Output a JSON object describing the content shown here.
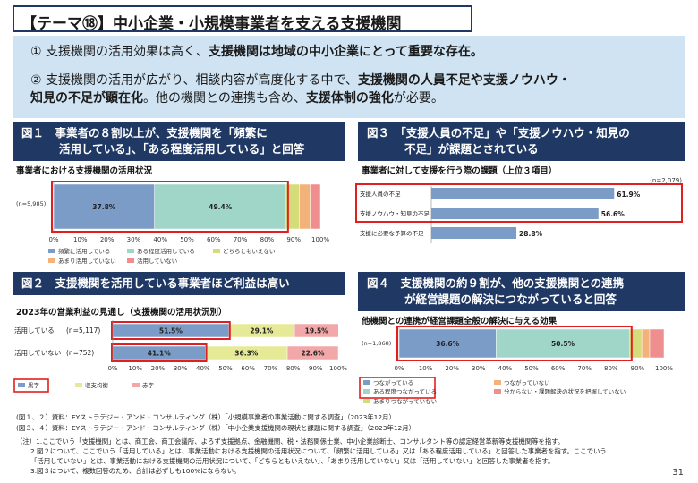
{
  "title": "【テーマ⑱】中小企業・小規模事業者を支える支援機関",
  "summary": {
    "p1": {
      "num": "①",
      "pre": "支援機関の活用効果は高く、",
      "bold": "支援機関は地域の中小企業にとって重要な存在。"
    },
    "p2": {
      "num": "②",
      "pre": "支援機関の活用が広がり、相談内容が高度化する中で、",
      "bold1": "支援機関の人員不足や支援ノウハウ・",
      "bold2": "知見の不足が顕在化",
      "mid": "。他の機関との連携も含め、",
      "bold3": "支援体制の強化",
      "post": "が必要。"
    }
  },
  "figures": {
    "fig1": {
      "line1": "図１　事業者の８割以上が、支援機関を「頻繁に",
      "line2": "活用している」、「ある程度活用している」と回答",
      "subtitle": "事業者における支援機関の活用状況"
    },
    "fig2": {
      "line1": "図２　支援機関を活用している事業者ほど利益は高い",
      "subtitle": "2023年の営業利益の見通し（支援機関の活用状況別）"
    },
    "fig3": {
      "line1": "図３　「支援人員の不足」や「支援ノウハウ・知見の",
      "line2": "不足」が課題とされている",
      "subtitle": "事業者に対して支援を行う際の課題（上位３項目）"
    },
    "fig4": {
      "line1": "図４　支援機関の約９割が、他の支援機関との連携",
      "line2": "が経営課題の解決につながっていると回答",
      "subtitle": "他機関との連携が経営課題全般の解決に与える効果"
    }
  },
  "chart_data": [
    {
      "id": "fig1",
      "type": "bar",
      "orientation": "horizontal",
      "stacked": true,
      "n_label": "(n=5,985)",
      "series": [
        {
          "name": "頻繁に活用している",
          "values": [
            37.8
          ],
          "label": "37.8%",
          "color": "#7b9cc7"
        },
        {
          "name": "ある程度活用している",
          "values": [
            49.4
          ],
          "label": "49.4%",
          "color": "#9fd6c8"
        },
        {
          "name": "どちらともいえない",
          "values": [
            5.0
          ],
          "color": "#d4dd7a"
        },
        {
          "name": "あまり活用していない",
          "values": [
            4.0
          ],
          "color": "#f3b27a"
        },
        {
          "name": "活用していない",
          "values": [
            3.8
          ],
          "color": "#ee8e8e"
        }
      ],
      "xticks": [
        "0%",
        "10%",
        "20%",
        "30%",
        "40%",
        "50%",
        "60%",
        "70%",
        "80%",
        "90%",
        "100%"
      ],
      "xlim": [
        0,
        100
      ]
    },
    {
      "id": "fig2",
      "type": "bar",
      "orientation": "horizontal",
      "stacked": true,
      "categories": [
        "活用している",
        "活用していない"
      ],
      "n_labels": [
        "(n=5,117)",
        "(n=752)"
      ],
      "series": [
        {
          "name": "黒字",
          "values": [
            51.5,
            41.1
          ],
          "labels": [
            "51.5%",
            "41.1%"
          ],
          "color": "#7b9cc7"
        },
        {
          "name": "収支均衡",
          "values": [
            29.1,
            36.3
          ],
          "labels": [
            "29.1%",
            "36.3%"
          ],
          "color": "#e6ea96"
        },
        {
          "name": "赤字",
          "values": [
            19.5,
            22.6
          ],
          "labels": [
            "19.5%",
            "22.6%"
          ],
          "color": "#f2a8a8"
        }
      ],
      "xticks": [
        "0%",
        "10%",
        "20%",
        "30%",
        "40%",
        "50%",
        "60%",
        "70%",
        "80%",
        "90%",
        "100%"
      ],
      "xlim": [
        0,
        100
      ]
    },
    {
      "id": "fig3",
      "type": "bar",
      "orientation": "horizontal",
      "n_label": "(n=2,079)",
      "categories": [
        "支援人員の不足",
        "支援ノウハウ・知見の不足",
        "支援に必要な予算の不足"
      ],
      "values": [
        61.9,
        56.6,
        28.8
      ],
      "labels": [
        "61.9%",
        "56.6%",
        "28.8%"
      ],
      "color": "#7b9cc7",
      "xlim": [
        0,
        80
      ]
    },
    {
      "id": "fig4",
      "type": "bar",
      "orientation": "horizontal",
      "stacked": true,
      "n_label": "(n=1,868)",
      "series": [
        {
          "name": "つながっている",
          "values": [
            36.6
          ],
          "label": "36.6%",
          "color": "#7b9cc7"
        },
        {
          "name": "ある程度つながっている",
          "values": [
            50.5
          ],
          "label": "50.5%",
          "color": "#9fd6c8"
        },
        {
          "name": "あまりつながっていない",
          "values": [
            4.5
          ],
          "color": "#d4dd7a"
        },
        {
          "name": "つながっていない",
          "values": [
            3.0
          ],
          "color": "#f3b27a"
        },
        {
          "name": "分からない・課題解決の状況を把握していない",
          "values": [
            5.4
          ],
          "color": "#ee8e8e"
        }
      ],
      "xticks": [
        "0%",
        "10%",
        "20%",
        "30%",
        "40%",
        "50%",
        "60%",
        "70%",
        "80%",
        "90%",
        "100%"
      ],
      "xlim": [
        0,
        100
      ]
    }
  ],
  "notes": {
    "src1": "(図１、２）資料：EYストラテジー・アンド・コンサルティング（株）「小規模事業者の事業活動に関する調査」（2023年12月）",
    "src2": "(図３、４）資料：EYストラテジー・アンド・コンサルティング（株）「中小企業支援機関の現状と課題に関する調査」（2023年12月）",
    "n1": "（注）1.ここでいう「支援機関」とは、商工会、商工会議所、よろず支援拠点、金融機関、税・法務関係士業、中小企業診断士、コンサルタント等の認定経営革新等支援機関等を指す。",
    "n2a": "2.図２について、ここでいう「活用している」とは、事業活動における支援機関の活用状況について、「頻繁に活用している」又は「ある程度活用している」と回答した事業者を指す。ここでいう",
    "n2b": "「活用していない」とは、事業活動における支援機関の活用状況について、「どちらともいえない」、「あまり活用していない」又は「活用していない」と回答した事業者を指す。",
    "n3": "3.図３について、複数回答のため、合計は必ずしも100%にならない。"
  },
  "page_number": "31"
}
